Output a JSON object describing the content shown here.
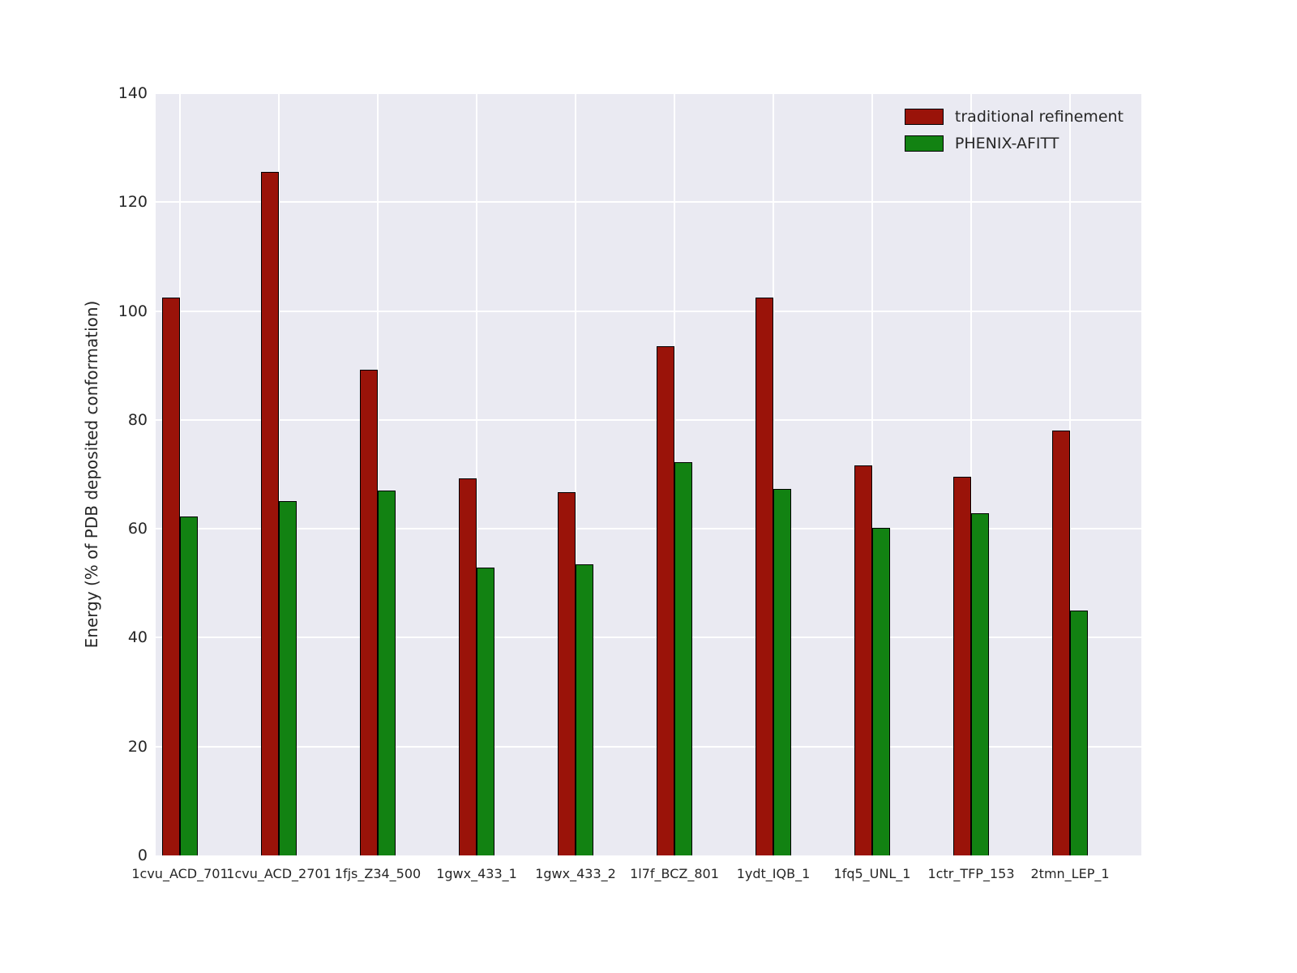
{
  "figure": {
    "background": "#ffffff",
    "plot_background": "#eaeaf2",
    "grid_color": "#ffffff",
    "text_color": "#262626"
  },
  "chart_data": {
    "type": "bar",
    "title": "",
    "xlabel": "",
    "ylabel": "Energy (% of PDB deposited conformation)",
    "ylim": [
      0,
      140
    ],
    "yticks": [
      0,
      20,
      40,
      60,
      80,
      100,
      120,
      140
    ],
    "grid": true,
    "legend_position": "upper right",
    "categories": [
      "1cvu_ACD_701",
      "1cvu_ACD_2701",
      "1fjs_Z34_500",
      "1gwx_433_1",
      "1gwx_433_2",
      "1l7f_BCZ_801",
      "1ydt_IQB_1",
      "1fq5_UNL_1",
      "1ctr_TFP_153",
      "2tmn_LEP_1"
    ],
    "series": [
      {
        "name": "traditional refinement",
        "color": "#9a1309",
        "values": [
          102.5,
          125.5,
          89.2,
          69.2,
          66.7,
          93.5,
          102.4,
          71.6,
          69.5,
          78.1
        ]
      },
      {
        "name": "PHENIX-AFITT",
        "color": "#128212",
        "values": [
          62.2,
          65.1,
          67.0,
          52.8,
          53.5,
          72.3,
          67.3,
          60.1,
          62.9,
          45.0
        ]
      }
    ]
  }
}
